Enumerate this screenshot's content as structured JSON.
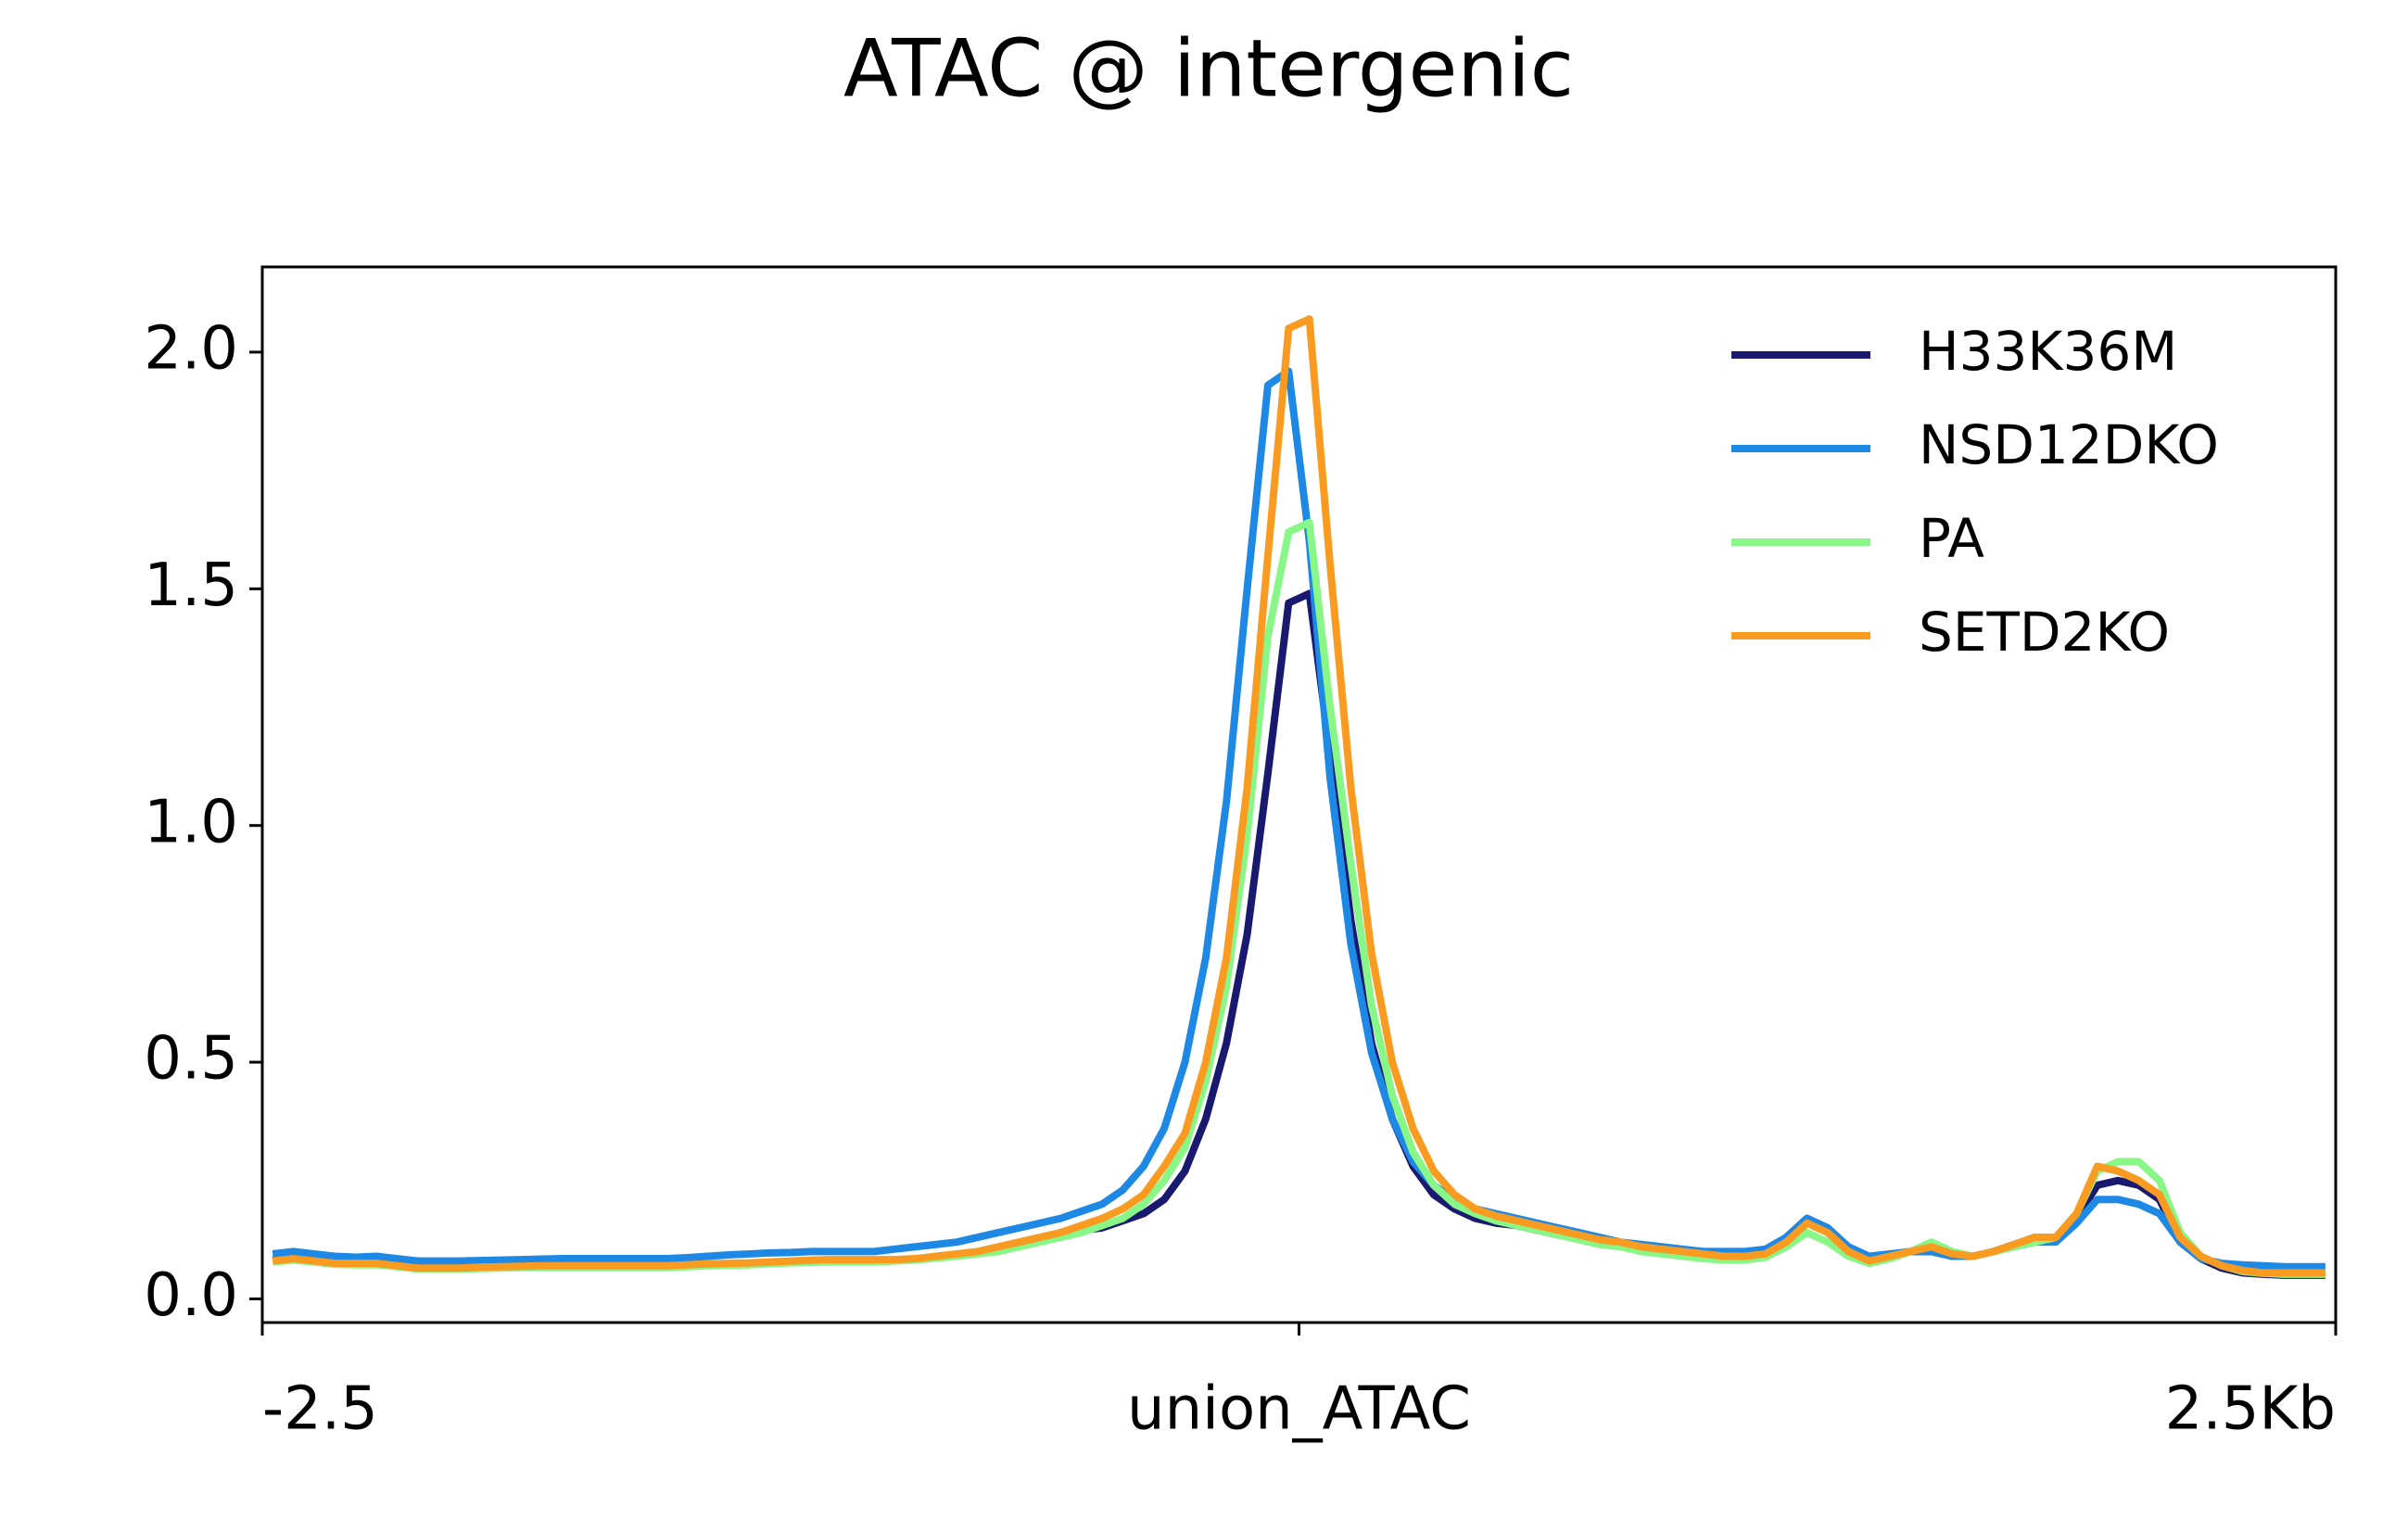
{
  "chart_data": {
    "type": "line",
    "title": "ATAC @ intergenic",
    "x": [
      -2.475,
      -2.425,
      -2.375,
      -2.325,
      -2.275,
      -2.225,
      -2.175,
      -2.125,
      -2.075,
      -2.025,
      -1.975,
      -1.925,
      -1.875,
      -1.825,
      -1.775,
      -1.725,
      -1.675,
      -1.625,
      -1.575,
      -1.525,
      -1.475,
      -1.425,
      -1.375,
      -1.325,
      -1.275,
      -1.225,
      -1.175,
      -1.125,
      -1.075,
      -1.025,
      -0.975,
      -0.925,
      -0.875,
      -0.825,
      -0.775,
      -0.725,
      -0.675,
      -0.625,
      -0.575,
      -0.525,
      -0.475,
      -0.425,
      -0.375,
      -0.325,
      -0.275,
      -0.225,
      -0.175,
      -0.125,
      -0.075,
      -0.025,
      0.025,
      0.075,
      0.125,
      0.175,
      0.225,
      0.275,
      0.325,
      0.375,
      0.425,
      0.475,
      0.525,
      0.575,
      0.625,
      0.675,
      0.725,
      0.775,
      0.825,
      0.875,
      0.925,
      0.975,
      1.025,
      1.075,
      1.125,
      1.175,
      1.225,
      1.275,
      1.325,
      1.375,
      1.425,
      1.475,
      1.525,
      1.575,
      1.625,
      1.675,
      1.725,
      1.775,
      1.825,
      1.875,
      1.925,
      1.975,
      2.025,
      2.075,
      2.125,
      2.175,
      2.225,
      2.275,
      2.325,
      2.375,
      2.425,
      2.475
    ],
    "series": [
      {
        "name": "H33K36M",
        "color": "#191970",
        "values": [
          0.082,
          0.087,
          0.082,
          0.077,
          0.075,
          0.075,
          0.07,
          0.065,
          0.065,
          0.065,
          0.066,
          0.067,
          0.068,
          0.069,
          0.069,
          0.069,
          0.069,
          0.069,
          0.069,
          0.069,
          0.07,
          0.072,
          0.073,
          0.074,
          0.076,
          0.078,
          0.08,
          0.081,
          0.081,
          0.081,
          0.082,
          0.084,
          0.088,
          0.093,
          0.098,
          0.105,
          0.115,
          0.125,
          0.135,
          0.145,
          0.15,
          0.165,
          0.18,
          0.21,
          0.27,
          0.38,
          0.54,
          0.77,
          1.11,
          1.47,
          1.49,
          1.15,
          0.8,
          0.54,
          0.38,
          0.28,
          0.22,
          0.19,
          0.17,
          0.16,
          0.155,
          0.145,
          0.135,
          0.13,
          0.12,
          0.115,
          0.105,
          0.1,
          0.095,
          0.09,
          0.09,
          0.09,
          0.095,
          0.13,
          0.17,
          0.15,
          0.1,
          0.08,
          0.09,
          0.1,
          0.1,
          0.09,
          0.09,
          0.1,
          0.115,
          0.13,
          0.13,
          0.17,
          0.24,
          0.25,
          0.24,
          0.21,
          0.12,
          0.085,
          0.065,
          0.055,
          0.052,
          0.05,
          0.05,
          0.05
        ]
      },
      {
        "name": "NSD12DKO",
        "color": "#1e88e5",
        "values": [
          0.095,
          0.1,
          0.095,
          0.09,
          0.088,
          0.09,
          0.085,
          0.08,
          0.08,
          0.08,
          0.081,
          0.082,
          0.083,
          0.084,
          0.085,
          0.085,
          0.085,
          0.085,
          0.085,
          0.085,
          0.087,
          0.09,
          0.093,
          0.095,
          0.097,
          0.098,
          0.1,
          0.1,
          0.1,
          0.1,
          0.105,
          0.11,
          0.115,
          0.12,
          0.13,
          0.14,
          0.15,
          0.16,
          0.17,
          0.185,
          0.2,
          0.23,
          0.28,
          0.36,
          0.5,
          0.72,
          1.05,
          1.5,
          1.93,
          1.96,
          1.6,
          1.1,
          0.75,
          0.52,
          0.38,
          0.29,
          0.24,
          0.21,
          0.19,
          0.18,
          0.17,
          0.16,
          0.15,
          0.14,
          0.13,
          0.12,
          0.115,
          0.11,
          0.105,
          0.1,
          0.1,
          0.1,
          0.105,
          0.13,
          0.17,
          0.15,
          0.11,
          0.09,
          0.095,
          0.1,
          0.1,
          0.09,
          0.09,
          0.1,
          0.11,
          0.12,
          0.12,
          0.16,
          0.21,
          0.21,
          0.2,
          0.18,
          0.12,
          0.085,
          0.075,
          0.072,
          0.07,
          0.068,
          0.068,
          0.068
        ]
      },
      {
        "name": "PA",
        "color": "#88f788",
        "values": [
          0.078,
          0.082,
          0.078,
          0.073,
          0.072,
          0.072,
          0.068,
          0.063,
          0.063,
          0.063,
          0.064,
          0.065,
          0.066,
          0.066,
          0.066,
          0.066,
          0.066,
          0.066,
          0.066,
          0.066,
          0.068,
          0.07,
          0.071,
          0.072,
          0.074,
          0.076,
          0.077,
          0.078,
          0.078,
          0.078,
          0.08,
          0.082,
          0.086,
          0.09,
          0.095,
          0.1,
          0.11,
          0.12,
          0.13,
          0.14,
          0.155,
          0.17,
          0.2,
          0.25,
          0.32,
          0.46,
          0.66,
          0.98,
          1.4,
          1.62,
          1.64,
          1.25,
          0.92,
          0.62,
          0.43,
          0.31,
          0.24,
          0.2,
          0.18,
          0.165,
          0.155,
          0.145,
          0.135,
          0.125,
          0.115,
          0.11,
          0.1,
          0.095,
          0.09,
          0.085,
          0.082,
          0.082,
          0.088,
          0.11,
          0.14,
          0.12,
          0.09,
          0.075,
          0.085,
          0.1,
          0.12,
          0.1,
          0.09,
          0.1,
          0.11,
          0.12,
          0.13,
          0.18,
          0.27,
          0.29,
          0.29,
          0.25,
          0.14,
          0.09,
          0.07,
          0.058,
          0.054,
          0.052,
          0.052,
          0.052
        ]
      },
      {
        "name": "SETD2KO",
        "color": "#f99b21",
        "values": [
          0.08,
          0.085,
          0.08,
          0.075,
          0.075,
          0.075,
          0.07,
          0.065,
          0.065,
          0.065,
          0.067,
          0.068,
          0.069,
          0.07,
          0.07,
          0.07,
          0.07,
          0.07,
          0.07,
          0.07,
          0.072,
          0.074,
          0.075,
          0.076,
          0.078,
          0.08,
          0.082,
          0.083,
          0.083,
          0.083,
          0.083,
          0.085,
          0.09,
          0.095,
          0.1,
          0.11,
          0.12,
          0.13,
          0.14,
          0.155,
          0.17,
          0.19,
          0.22,
          0.28,
          0.35,
          0.5,
          0.72,
          1.08,
          1.57,
          2.05,
          2.07,
          1.55,
          1.08,
          0.73,
          0.5,
          0.36,
          0.27,
          0.22,
          0.19,
          0.175,
          0.165,
          0.155,
          0.145,
          0.135,
          0.125,
          0.12,
          0.11,
          0.105,
          0.1,
          0.095,
          0.09,
          0.09,
          0.095,
          0.12,
          0.16,
          0.14,
          0.1,
          0.08,
          0.09,
          0.1,
          0.11,
          0.095,
          0.09,
          0.1,
          0.115,
          0.13,
          0.13,
          0.18,
          0.28,
          0.27,
          0.25,
          0.22,
          0.13,
          0.09,
          0.07,
          0.06,
          0.055,
          0.055,
          0.055,
          0.055
        ]
      }
    ],
    "xlim": [
      -2.5,
      2.5
    ],
    "xticks": [
      -2.5,
      {
        "value": 0,
        "label": "union_ATAC"
      },
      {
        "value": 2.5,
        "label": "2.5Kb"
      }
    ],
    "ylim": [
      -0.05,
      2.18
    ],
    "yticks": [
      0.0,
      0.5,
      1.0,
      1.5,
      2.0
    ],
    "legend": "upper right"
  }
}
